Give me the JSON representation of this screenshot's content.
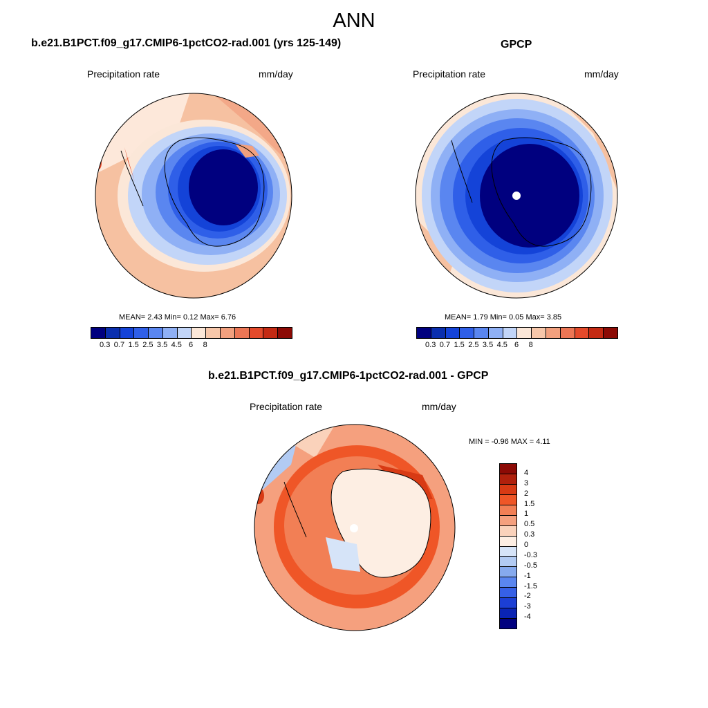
{
  "title": "ANN",
  "panels": [
    {
      "title": "b.e21.B1PCT.f09_g17.CMIP6-1pctCO2-rad.001 (yrs 125-149)",
      "variable": "Precipitation rate",
      "units": "mm/day",
      "stats_mean_label": "MEAN=",
      "stats_mean": "2.43",
      "stats_min_label": "Min=",
      "stats_min": "0.12",
      "stats_max_label": "Max=",
      "stats_max": "6.76",
      "colorbar_ticks": [
        "0.3",
        "0.7",
        "1.5",
        "2.5",
        "3.5",
        "4.5",
        "6",
        "8"
      ]
    },
    {
      "title": "GPCP",
      "variable": "Precipitation rate",
      "units": "mm/day",
      "stats_mean_label": "MEAN=",
      "stats_mean": "1.79",
      "stats_min_label": "Min=",
      "stats_min": "0.05",
      "stats_max_label": "Max=",
      "stats_max": "3.85",
      "colorbar_ticks": [
        "0.3",
        "0.7",
        "1.5",
        "2.5",
        "3.5",
        "4.5",
        "6",
        "8"
      ]
    },
    {
      "title": "b.e21.B1PCT.f09_g17.CMIP6-1pctCO2-rad.001 - GPCP",
      "variable": "Precipitation rate",
      "units": "mm/day",
      "stats_text": "MIN =  -0.96 MAX =   4.11",
      "colorbar_ticks": [
        "4",
        "3",
        "2",
        "1.5",
        "1",
        "0.5",
        "0.3",
        "0",
        "-0.3",
        "-0.5",
        "-1",
        "-1.5",
        "-2",
        "-3",
        "-4"
      ]
    }
  ],
  "colors": {
    "abs_scale": [
      "#00007f",
      "#0a2fae",
      "#1443d8",
      "#2f5fe8",
      "#5a86f0",
      "#8fb0f5",
      "#c2d5f8",
      "#fbe7d8",
      "#f7c7aa",
      "#f2a07e",
      "#ec7655",
      "#e44a2b",
      "#c42a13",
      "#8c0a05"
    ],
    "diff_scale": [
      "#8c0a05",
      "#b0200c",
      "#d83a14",
      "#ef5627",
      "#f27f55",
      "#f5a07e",
      "#fad2bb",
      "#fdeee3",
      "#d6e4f8",
      "#b2cbf3",
      "#86aaee",
      "#5a86f0",
      "#3660e6",
      "#1c3fd4",
      "#0a24b4",
      "#00007f"
    ]
  }
}
